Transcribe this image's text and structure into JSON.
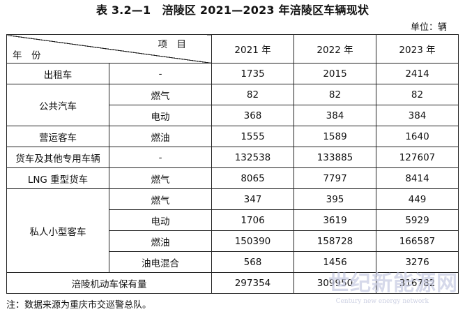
{
  "title": "表 3.2—1　涪陵区 2021—2023 年涪陵区车辆现状",
  "unit": "单位：辆",
  "header": {
    "item_label": "项　目",
    "year_label": "年　份",
    "years": [
      "2021 年",
      "2022 年",
      "2023 年"
    ]
  },
  "rows": {
    "taxi": {
      "category": "出租车",
      "type": "-",
      "values": [
        "1735",
        "2015",
        "2414"
      ]
    },
    "bus_gas": {
      "category": "公共汽车",
      "type": "燃气",
      "values": [
        "82",
        "82",
        "82"
      ]
    },
    "bus_electric": {
      "type": "电动",
      "values": [
        "368",
        "384",
        "384"
      ]
    },
    "coach": {
      "category": "营运客车",
      "type": "燃油",
      "values": [
        "1555",
        "1589",
        "1640"
      ]
    },
    "truck": {
      "category": "货车及其他专用车辆",
      "type": "-",
      "values": [
        "132538",
        "133885",
        "127607"
      ]
    },
    "lng_truck": {
      "category": "LNG 重型货车",
      "type": "燃气",
      "values": [
        "8065",
        "7797",
        "8414"
      ]
    },
    "private_gas": {
      "category": "私人小型客车",
      "type": "燃气",
      "values": [
        "347",
        "395",
        "449"
      ]
    },
    "private_electric": {
      "type": "电动",
      "values": [
        "1706",
        "3619",
        "5929"
      ]
    },
    "private_fuel": {
      "type": "燃油",
      "values": [
        "150390",
        "158728",
        "166587"
      ]
    },
    "private_hybrid": {
      "type": "油电混合",
      "values": [
        "568",
        "1456",
        "3276"
      ]
    },
    "total": {
      "category": "涪陵机动车保有量",
      "values": [
        "297354",
        "309950",
        "316782"
      ]
    }
  },
  "note": "注：数据来源为重庆市交巡警总队。",
  "watermark": {
    "main": "世纪新能源网",
    "sub": "Century new energy network"
  }
}
